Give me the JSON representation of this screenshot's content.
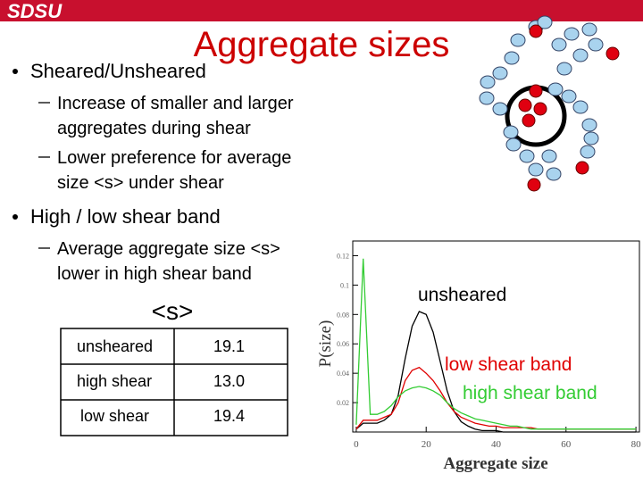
{
  "logo": "SDSU",
  "title": "Aggregate sizes",
  "bullets": [
    {
      "text": "Sheared/Unsheared",
      "sub": [
        [
          "Increase of smaller and larger",
          "aggregates during shear"
        ],
        [
          "Lower preference for average",
          "size <s> under shear"
        ]
      ]
    },
    {
      "text": "High / low shear band",
      "sub": [
        [
          "Average aggregate size <s>",
          "lower in high shear band"
        ]
      ]
    }
  ],
  "table": {
    "header": "<s>",
    "rows": [
      [
        "unsheared",
        "19.1"
      ],
      [
        "high shear",
        "13.0"
      ],
      [
        "low shear",
        "19.4"
      ]
    ]
  },
  "chart_data": {
    "type": "line",
    "x_label": "Aggregate size",
    "y_label": "P(size)",
    "x": [
      0,
      2,
      4,
      6,
      8,
      10,
      12,
      14,
      16,
      18,
      20,
      22,
      24,
      26,
      28,
      30,
      32,
      34,
      36,
      38,
      40,
      42,
      44,
      46,
      48,
      50,
      52,
      54,
      56,
      58,
      60,
      62,
      64,
      66,
      68,
      70,
      72,
      74,
      76,
      78,
      80
    ],
    "series": [
      {
        "name": "unsheared",
        "color": "#000000",
        "values": [
          0.002,
          0.006,
          0.006,
          0.006,
          0.008,
          0.012,
          0.025,
          0.05,
          0.072,
          0.082,
          0.08,
          0.068,
          0.048,
          0.028,
          0.014,
          0.007,
          0.004,
          0.002,
          0.001,
          0.001,
          0.001,
          0,
          0,
          0,
          0,
          0,
          0,
          0,
          0,
          0,
          0,
          0,
          0,
          0,
          0,
          0,
          0,
          0,
          0,
          0,
          0
        ]
      },
      {
        "name": "low shear band",
        "color": "#e00000",
        "values": [
          0.002,
          0.008,
          0.008,
          0.008,
          0.01,
          0.012,
          0.02,
          0.035,
          0.042,
          0.044,
          0.04,
          0.035,
          0.028,
          0.02,
          0.014,
          0.01,
          0.008,
          0.006,
          0.005,
          0.004,
          0.004,
          0.003,
          0.003,
          0.003,
          0.003,
          0.003,
          0.002,
          0.002,
          0.002,
          0.002,
          0.002,
          0.002,
          0.002,
          0.002,
          0.002,
          0.002,
          0.002,
          0.002,
          0.002,
          0.002,
          0.002
        ]
      },
      {
        "name": "high shear band",
        "color": "#33cc33",
        "values": [
          0.005,
          0.118,
          0.012,
          0.012,
          0.014,
          0.018,
          0.024,
          0.028,
          0.03,
          0.031,
          0.03,
          0.028,
          0.025,
          0.02,
          0.016,
          0.013,
          0.011,
          0.009,
          0.008,
          0.007,
          0.006,
          0.005,
          0.004,
          0.004,
          0.003,
          0.002,
          0.002,
          0.002,
          0.002,
          0.002,
          0.002,
          0.002,
          0.002,
          0.002,
          0.002,
          0.002,
          0.002,
          0.002,
          0.002,
          0.002,
          0.002
        ]
      }
    ],
    "xlim": [
      -1,
      81
    ],
    "ylim": [
      0,
      0.13
    ],
    "xticks": [
      0,
      20,
      40,
      60,
      80
    ],
    "yticks": [
      0.02,
      0.04,
      0.06,
      0.08,
      0.1,
      0.12
    ]
  }
}
